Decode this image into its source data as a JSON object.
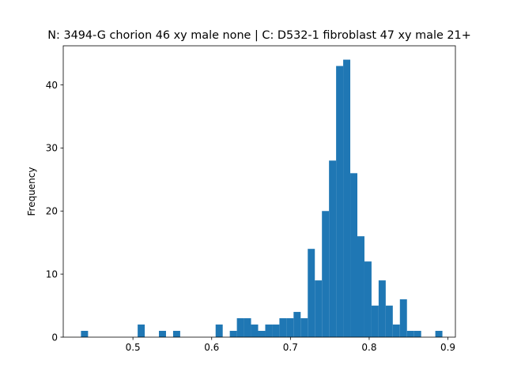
{
  "chart_data": {
    "type": "bar",
    "title": "N: 3494-G chorion 46 xy male none | C: D532-1 fibroblast 47 xy male 21+",
    "xlabel": "",
    "ylabel": "Frequency",
    "xlim": [
      0.4115,
      0.9095
    ],
    "ylim": [
      0,
      46.2
    ],
    "xticks": [
      0.5,
      0.6,
      0.7,
      0.8,
      0.9
    ],
    "xtick_labels": [
      "0.5",
      "0.6",
      "0.7",
      "0.8",
      "0.9"
    ],
    "yticks": [
      0,
      10,
      20,
      30,
      40
    ],
    "ytick_labels": [
      "0",
      "10",
      "20",
      "30",
      "40"
    ],
    "bin_start": 0.434,
    "bin_width": 0.009,
    "values": [
      1,
      0,
      0,
      0,
      0,
      0,
      0,
      0,
      2,
      0,
      0,
      1,
      0,
      1,
      0,
      0,
      0,
      0,
      0,
      2,
      0,
      1,
      3,
      3,
      2,
      1,
      2,
      2,
      3,
      3,
      4,
      3,
      14,
      9,
      20,
      28,
      43,
      44,
      26,
      16,
      12,
      5,
      9,
      5,
      2,
      6,
      1,
      1,
      0,
      0,
      1
    ],
    "bar_color": "#1f77b4",
    "grid": false
  }
}
